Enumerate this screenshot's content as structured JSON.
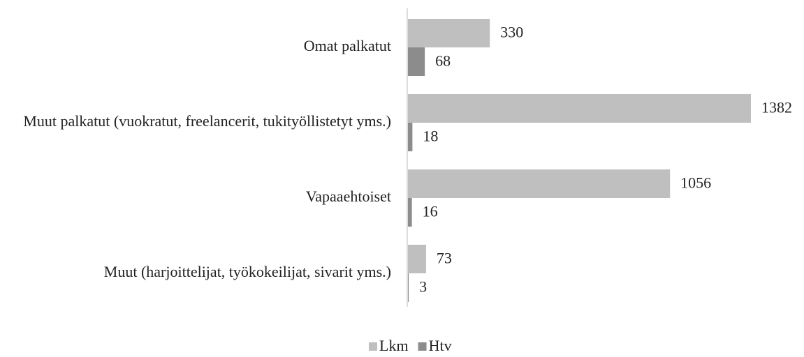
{
  "chart_data": {
    "type": "bar",
    "orientation": "horizontal",
    "categories": [
      "Omat palkatut",
      "Muut palkatut (vuokratut, freelancerit, tukityöllistetyt yms.)",
      "Vapaaehtoiset",
      "Muut (harjoittelijat, työkokeilijat, sivarit yms.)"
    ],
    "series": [
      {
        "name": "Lkm",
        "color": "#bfbfbf",
        "values": [
          330,
          1382,
          1056,
          73
        ]
      },
      {
        "name": "Htv",
        "color": "#8c8c8c",
        "values": [
          68,
          18,
          16,
          3
        ]
      }
    ],
    "legend": "bottom"
  }
}
